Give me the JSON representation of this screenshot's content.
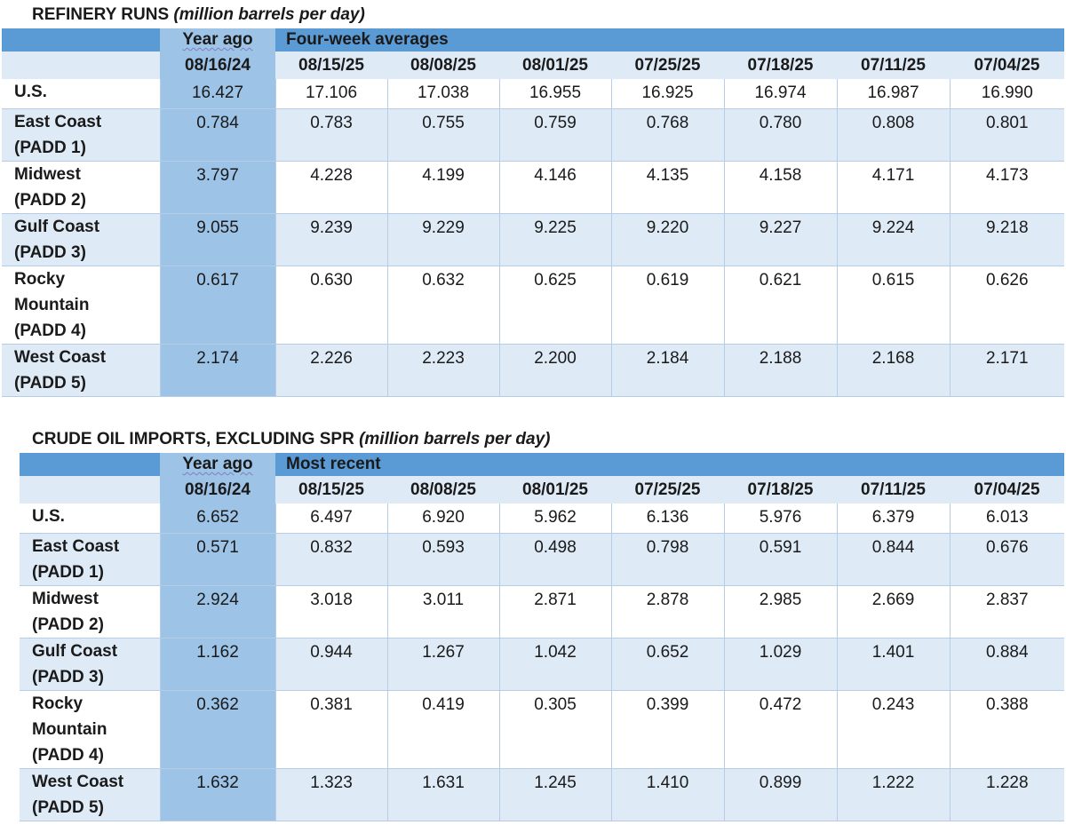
{
  "tables": [
    {
      "title": "REFINERY RUNS",
      "unit": "(million barrels per day)",
      "year_ago_label": "Year ago",
      "span_label": "Four-week averages",
      "dates": [
        "08/16/24",
        "08/15/25",
        "08/08/25",
        "08/01/25",
        "07/25/25",
        "07/18/25",
        "07/11/25",
        "07/04/25"
      ],
      "rows": [
        {
          "lines": [
            "U.S."
          ],
          "values": [
            "16.427",
            "17.106",
            "17.038",
            "16.955",
            "16.925",
            "16.974",
            "16.987",
            "16.990"
          ]
        },
        {
          "lines": [
            "East Coast",
            "(PADD 1)"
          ],
          "values": [
            "0.784",
            "0.783",
            "0.755",
            "0.759",
            "0.768",
            "0.780",
            "0.808",
            "0.801"
          ]
        },
        {
          "lines": [
            "Midwest",
            "(PADD 2)"
          ],
          "values": [
            "3.797",
            "4.228",
            "4.199",
            "4.146",
            "4.135",
            "4.158",
            "4.171",
            "4.173"
          ]
        },
        {
          "lines": [
            "Gulf Coast",
            "(PADD 3)"
          ],
          "values": [
            "9.055",
            "9.239",
            "9.229",
            "9.225",
            "9.220",
            "9.227",
            "9.224",
            "9.218"
          ]
        },
        {
          "lines": [
            "Rocky",
            "Mountain",
            "(PADD 4)"
          ],
          "values": [
            "0.617",
            "0.630",
            "0.632",
            "0.625",
            "0.619",
            "0.621",
            "0.615",
            "0.626"
          ]
        },
        {
          "lines": [
            "West Coast",
            "(PADD 5)"
          ],
          "values": [
            "2.174",
            "2.226",
            "2.223",
            "2.200",
            "2.184",
            "2.188",
            "2.168",
            "2.171"
          ]
        }
      ]
    },
    {
      "title": "CRUDE OIL IMPORTS, EXCLUDING SPR",
      "unit": "(million barrels per day)",
      "year_ago_label": "Year ago",
      "span_label": "Most recent",
      "dates": [
        "08/16/24",
        "08/15/25",
        "08/08/25",
        "08/01/25",
        "07/25/25",
        "07/18/25",
        "07/11/25",
        "07/04/25"
      ],
      "rows": [
        {
          "lines": [
            "U.S."
          ],
          "values": [
            "6.652",
            "6.497",
            "6.920",
            "5.962",
            "6.136",
            "5.976",
            "6.379",
            "6.013"
          ]
        },
        {
          "lines": [
            "East Coast",
            "(PADD 1)"
          ],
          "values": [
            "0.571",
            "0.832",
            "0.593",
            "0.498",
            "0.798",
            "0.591",
            "0.844",
            "0.676"
          ]
        },
        {
          "lines": [
            "Midwest",
            "(PADD 2)"
          ],
          "values": [
            "2.924",
            "3.018",
            "3.011",
            "2.871",
            "2.878",
            "2.985",
            "2.669",
            "2.837"
          ]
        },
        {
          "lines": [
            "Gulf Coast",
            "(PADD 3)"
          ],
          "values": [
            "1.162",
            "0.944",
            "1.267",
            "1.042",
            "0.652",
            "1.029",
            "1.401",
            "0.884"
          ]
        },
        {
          "lines": [
            "Rocky",
            "Mountain",
            "(PADD 4)"
          ],
          "values": [
            "0.362",
            "0.381",
            "0.419",
            "0.305",
            "0.399",
            "0.472",
            "0.243",
            "0.388"
          ]
        },
        {
          "lines": [
            "West Coast",
            "(PADD 5)"
          ],
          "values": [
            "1.632",
            "1.323",
            "1.631",
            "1.245",
            "1.410",
            "0.899",
            "1.222",
            "1.228"
          ]
        }
      ]
    }
  ],
  "colors": {
    "header_blue": "#5b9bd5",
    "year_ago_column": "#9dc3e6",
    "band_light": "#deeaf6",
    "band_white": "#ffffff"
  }
}
